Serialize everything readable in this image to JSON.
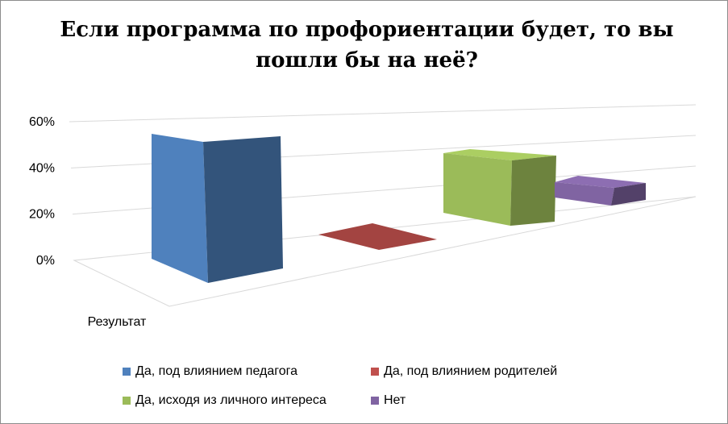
{
  "chart_data": {
    "type": "bar",
    "title": "Если программа по профориентации будет, то вы пошли бы на неё?",
    "categories": [
      "Результат"
    ],
    "series": [
      {
        "name": "Да, под влиянием педагога",
        "values": [
          0.55
        ],
        "color": "#4F81BD"
      },
      {
        "name": "Да, под влиянием родителей",
        "values": [
          0.0
        ],
        "color": "#C0504D"
      },
      {
        "name": "Да, исходя из личного интереса",
        "values": [
          0.33
        ],
        "color": "#9BBB59"
      },
      {
        "name": "Нет",
        "values": [
          0.12
        ],
        "color": "#8064A2"
      }
    ],
    "yticks": [
      "0%",
      "20%",
      "40%",
      "60%"
    ],
    "ylim": [
      0,
      0.6
    ],
    "grid": true,
    "legend_position": "bottom",
    "projection": "3d"
  }
}
